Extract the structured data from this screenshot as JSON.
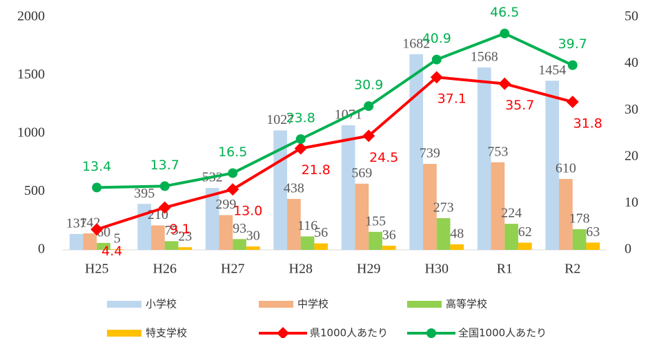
{
  "chart_data": {
    "type": "bar-line",
    "categories": [
      "H25",
      "H26",
      "H27",
      "H28",
      "H29",
      "H30",
      "R1",
      "R2"
    ],
    "series": [
      {
        "name": "小学校",
        "type": "bar",
        "color": "#bdd7ee",
        "values": [
          137,
          395,
          532,
          1027,
          1071,
          1682,
          1568,
          1454
        ]
      },
      {
        "name": "中学校",
        "type": "bar",
        "color": "#f4b183",
        "values": [
          142,
          210,
          299,
          438,
          569,
          739,
          753,
          610
        ]
      },
      {
        "name": "高等学校",
        "type": "bar",
        "color": "#92d050",
        "values": [
          60,
          75,
          93,
          116,
          155,
          273,
          224,
          178
        ]
      },
      {
        "name": "特支学校",
        "type": "bar",
        "color": "#ffc000",
        "values": [
          5,
          23,
          30,
          56,
          36,
          48,
          62,
          63
        ]
      },
      {
        "name": "県1000人あたり",
        "type": "line",
        "axis": "y2",
        "marker": "diamond",
        "color": "#ff0000",
        "values": [
          4.4,
          9.1,
          13.0,
          21.8,
          24.5,
          37.1,
          35.7,
          31.8
        ],
        "value_labels": [
          "4.4",
          "9.1",
          "13.0",
          "21.8",
          "24.5",
          "37.1",
          "35.7",
          "31.8"
        ]
      },
      {
        "name": "全国1000人あたり",
        "type": "line",
        "axis": "y2",
        "marker": "circle",
        "color": "#00b050",
        "values": [
          13.4,
          13.7,
          16.5,
          23.8,
          30.9,
          40.9,
          46.5,
          39.7
        ]
      }
    ],
    "ylim": [
      0,
      2000
    ],
    "yticks": [
      0,
      500,
      1000,
      1500,
      2000
    ],
    "y2lim": [
      0,
      50
    ],
    "y2ticks": [
      0,
      10,
      20,
      30,
      40,
      50
    ],
    "legend": "bottom"
  }
}
